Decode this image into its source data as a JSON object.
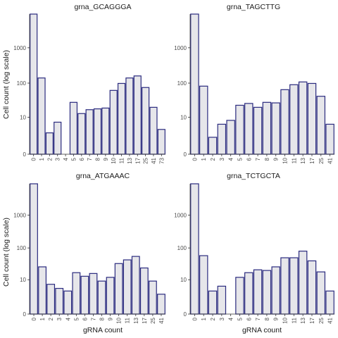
{
  "chart_data": [
    {
      "type": "bar",
      "title": "grna_GCAGGGA",
      "categories": [
        "0",
        "1",
        "2",
        "3",
        "4",
        "5",
        "6",
        "7",
        "8",
        "9",
        "10",
        "11",
        "13",
        "17",
        "25",
        "41",
        "73"
      ],
      "values": [
        100000,
        140,
        3,
        7,
        0,
        28,
        13,
        17,
        18,
        19,
        62,
        98,
        140,
        160,
        75,
        20,
        4
      ],
      "xlabel": "",
      "ylabel": "Cell count (log scale)",
      "y_ticks": [
        "0",
        "10",
        "100",
        "1000"
      ],
      "y_tick_values": [
        0,
        10,
        100,
        1000
      ],
      "yscale": "log"
    },
    {
      "type": "bar",
      "title": "grna_TAGCTTG",
      "categories": [
        "0",
        "1",
        "2",
        "3",
        "4",
        "5",
        "6",
        "7",
        "8",
        "9",
        "10",
        "11",
        "13",
        "17",
        "25",
        "41"
      ],
      "values": [
        100000,
        82,
        2,
        6,
        8,
        23,
        26,
        20,
        28,
        27,
        65,
        90,
        108,
        98,
        42,
        6
      ],
      "xlabel": "",
      "ylabel": "",
      "y_ticks": [
        "0",
        "10",
        "100",
        "1000"
      ],
      "y_tick_values": [
        0,
        10,
        100,
        1000
      ],
      "yscale": "log"
    },
    {
      "type": "bar",
      "title": "grna_ATGAAAC",
      "categories": [
        "0",
        "1",
        "2",
        "3",
        "4",
        "5",
        "6",
        "7",
        "8",
        "9",
        "10",
        "11",
        "13",
        "17",
        "25",
        "41"
      ],
      "values": [
        100000,
        26,
        7,
        5,
        4,
        17,
        13,
        16,
        9,
        12,
        33,
        43,
        55,
        24,
        9,
        3
      ],
      "xlabel": "gRNA count",
      "ylabel": "Cell count (log scale)",
      "y_ticks": [
        "0",
        "10",
        "100",
        "1000"
      ],
      "y_tick_values": [
        0,
        10,
        100,
        1000
      ],
      "yscale": "log"
    },
    {
      "type": "bar",
      "title": "grna_TCTGCTA",
      "categories": [
        "0",
        "1",
        "2",
        "3",
        "4",
        "5",
        "6",
        "7",
        "8",
        "9",
        "10",
        "11",
        "13",
        "17",
        "25",
        "41"
      ],
      "values": [
        100000,
        58,
        4,
        6,
        0,
        12,
        17,
        21,
        20,
        26,
        50,
        50,
        80,
        40,
        18,
        4
      ],
      "xlabel": "gRNA count",
      "ylabel": "",
      "y_ticks": [
        "0",
        "10",
        "100",
        "1000"
      ],
      "y_tick_values": [
        0,
        10,
        100,
        1000
      ],
      "yscale": "log"
    }
  ],
  "colors": {
    "bar_fill": "#e6e6ea",
    "bar_stroke": "#2a2a7e",
    "axis": "#333333",
    "text": "#1a1a1a"
  }
}
